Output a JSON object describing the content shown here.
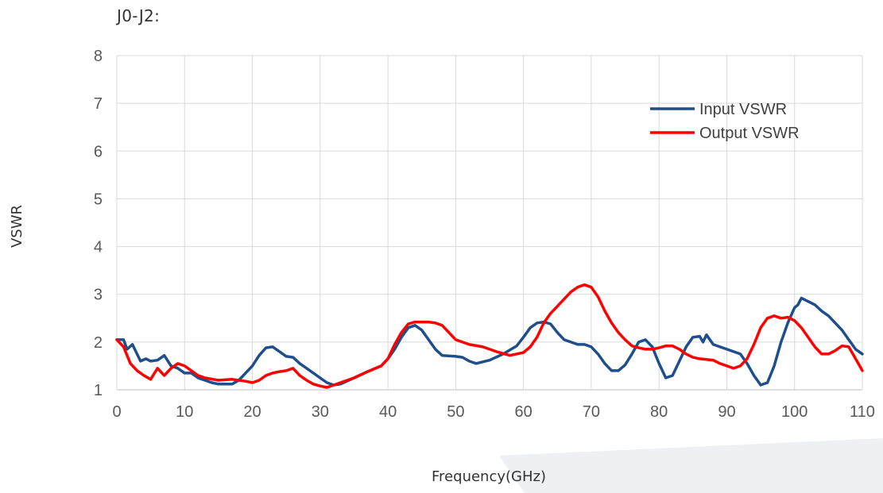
{
  "caption": "J0-J2:",
  "chart_data": {
    "type": "line",
    "title": "",
    "xlabel": "Frequency(GHz)",
    "ylabel": "VSWR",
    "xlim": [
      0,
      110
    ],
    "ylim": [
      1,
      8
    ],
    "xticks": [
      0,
      10,
      20,
      30,
      40,
      50,
      60,
      70,
      80,
      90,
      100,
      110
    ],
    "yticks": [
      1,
      2,
      3,
      4,
      5,
      6,
      7,
      8
    ],
    "grid": true,
    "legend_position": "top-right",
    "series": [
      {
        "name": "Input VSWR",
        "color": "#1F4E8C",
        "points": [
          [
            0,
            2.05
          ],
          [
            1,
            2.05
          ],
          [
            1.5,
            1.85
          ],
          [
            2.3,
            1.95
          ],
          [
            3.5,
            1.6
          ],
          [
            4.3,
            1.65
          ],
          [
            5,
            1.6
          ],
          [
            6,
            1.62
          ],
          [
            7,
            1.72
          ],
          [
            8,
            1.5
          ],
          [
            9,
            1.45
          ],
          [
            10,
            1.35
          ],
          [
            11,
            1.35
          ],
          [
            12,
            1.25
          ],
          [
            13,
            1.2
          ],
          [
            14,
            1.15
          ],
          [
            15,
            1.12
          ],
          [
            17,
            1.12
          ],
          [
            18,
            1.2
          ],
          [
            19,
            1.35
          ],
          [
            20,
            1.5
          ],
          [
            21,
            1.72
          ],
          [
            22,
            1.88
          ],
          [
            23,
            1.9
          ],
          [
            24,
            1.8
          ],
          [
            25,
            1.7
          ],
          [
            26,
            1.68
          ],
          [
            27,
            1.55
          ],
          [
            28,
            1.45
          ],
          [
            29,
            1.35
          ],
          [
            30,
            1.25
          ],
          [
            31,
            1.15
          ],
          [
            32,
            1.1
          ],
          [
            33,
            1.12
          ],
          [
            35,
            1.25
          ],
          [
            37,
            1.38
          ],
          [
            39,
            1.5
          ],
          [
            40,
            1.65
          ],
          [
            41,
            1.85
          ],
          [
            42,
            2.1
          ],
          [
            43,
            2.3
          ],
          [
            44,
            2.35
          ],
          [
            45,
            2.25
          ],
          [
            46,
            2.05
          ],
          [
            47,
            1.85
          ],
          [
            48,
            1.72
          ],
          [
            50,
            1.7
          ],
          [
            51,
            1.68
          ],
          [
            52,
            1.6
          ],
          [
            53,
            1.55
          ],
          [
            55,
            1.62
          ],
          [
            57,
            1.75
          ],
          [
            59,
            1.92
          ],
          [
            60,
            2.1
          ],
          [
            61,
            2.3
          ],
          [
            62,
            2.4
          ],
          [
            63,
            2.42
          ],
          [
            64,
            2.38
          ],
          [
            65,
            2.2
          ],
          [
            66,
            2.05
          ],
          [
            67,
            2
          ],
          [
            68,
            1.95
          ],
          [
            69,
            1.95
          ],
          [
            70,
            1.9
          ],
          [
            71,
            1.75
          ],
          [
            72,
            1.55
          ],
          [
            73,
            1.4
          ],
          [
            74,
            1.4
          ],
          [
            75,
            1.52
          ],
          [
            76,
            1.75
          ],
          [
            77,
            2
          ],
          [
            78,
            2.05
          ],
          [
            79,
            1.9
          ],
          [
            80,
            1.55
          ],
          [
            81,
            1.25
          ],
          [
            82,
            1.3
          ],
          [
            83,
            1.6
          ],
          [
            84,
            1.9
          ],
          [
            85,
            2.1
          ],
          [
            86,
            2.12
          ],
          [
            86.5,
            2
          ],
          [
            87,
            2.15
          ],
          [
            88,
            1.95
          ],
          [
            89,
            1.9
          ],
          [
            90,
            1.85
          ],
          [
            92,
            1.75
          ],
          [
            93,
            1.55
          ],
          [
            94,
            1.3
          ],
          [
            95,
            1.1
          ],
          [
            96,
            1.15
          ],
          [
            97,
            1.5
          ],
          [
            98,
            2
          ],
          [
            99,
            2.4
          ],
          [
            100,
            2.72
          ],
          [
            100.5,
            2.78
          ],
          [
            101,
            2.92
          ],
          [
            102,
            2.85
          ],
          [
            103,
            2.78
          ],
          [
            104,
            2.65
          ],
          [
            105,
            2.55
          ],
          [
            106,
            2.4
          ],
          [
            107,
            2.25
          ],
          [
            108,
            2.05
          ],
          [
            109,
            1.85
          ],
          [
            110,
            1.75
          ]
        ]
      },
      {
        "name": "Output VSWR",
        "color": "#FF0000",
        "points": [
          [
            0,
            2.05
          ],
          [
            1,
            1.9
          ],
          [
            2,
            1.55
          ],
          [
            3,
            1.4
          ],
          [
            4,
            1.3
          ],
          [
            5,
            1.22
          ],
          [
            6,
            1.45
          ],
          [
            7,
            1.3
          ],
          [
            8,
            1.45
          ],
          [
            9,
            1.55
          ],
          [
            10,
            1.5
          ],
          [
            11,
            1.4
          ],
          [
            12,
            1.3
          ],
          [
            13,
            1.25
          ],
          [
            15,
            1.2
          ],
          [
            17,
            1.22
          ],
          [
            19,
            1.18
          ],
          [
            20,
            1.15
          ],
          [
            21,
            1.2
          ],
          [
            22,
            1.3
          ],
          [
            23,
            1.35
          ],
          [
            24,
            1.38
          ],
          [
            25,
            1.4
          ],
          [
            26,
            1.45
          ],
          [
            27,
            1.3
          ],
          [
            28,
            1.2
          ],
          [
            29,
            1.12
          ],
          [
            30,
            1.08
          ],
          [
            31,
            1.05
          ],
          [
            32,
            1.1
          ],
          [
            33,
            1.15
          ],
          [
            35,
            1.25
          ],
          [
            37,
            1.38
          ],
          [
            39,
            1.5
          ],
          [
            40,
            1.65
          ],
          [
            41,
            1.95
          ],
          [
            42,
            2.2
          ],
          [
            43,
            2.38
          ],
          [
            44,
            2.42
          ],
          [
            46,
            2.42
          ],
          [
            47,
            2.4
          ],
          [
            48,
            2.35
          ],
          [
            49,
            2.2
          ],
          [
            50,
            2.05
          ],
          [
            51,
            2
          ],
          [
            52,
            1.95
          ],
          [
            54,
            1.9
          ],
          [
            56,
            1.8
          ],
          [
            58,
            1.72
          ],
          [
            60,
            1.78
          ],
          [
            61,
            1.9
          ],
          [
            62,
            2.1
          ],
          [
            63,
            2.4
          ],
          [
            64,
            2.6
          ],
          [
            65,
            2.75
          ],
          [
            66,
            2.9
          ],
          [
            67,
            3.05
          ],
          [
            68,
            3.15
          ],
          [
            69,
            3.2
          ],
          [
            70,
            3.15
          ],
          [
            71,
            2.95
          ],
          [
            72,
            2.65
          ],
          [
            73,
            2.4
          ],
          [
            74,
            2.2
          ],
          [
            75,
            2.05
          ],
          [
            76,
            1.92
          ],
          [
            77,
            1.88
          ],
          [
            78,
            1.85
          ],
          [
            79,
            1.85
          ],
          [
            80,
            1.88
          ],
          [
            81,
            1.92
          ],
          [
            82,
            1.92
          ],
          [
            83,
            1.85
          ],
          [
            84,
            1.75
          ],
          [
            85,
            1.68
          ],
          [
            86,
            1.65
          ],
          [
            88,
            1.62
          ],
          [
            89,
            1.55
          ],
          [
            90,
            1.5
          ],
          [
            91,
            1.45
          ],
          [
            92,
            1.5
          ],
          [
            93,
            1.65
          ],
          [
            94,
            1.95
          ],
          [
            95,
            2.3
          ],
          [
            96,
            2.5
          ],
          [
            97,
            2.55
          ],
          [
            98,
            2.5
          ],
          [
            99,
            2.52
          ],
          [
            100,
            2.45
          ],
          [
            101,
            2.3
          ],
          [
            102,
            2.1
          ],
          [
            103,
            1.9
          ],
          [
            104,
            1.75
          ],
          [
            105,
            1.75
          ],
          [
            106,
            1.82
          ],
          [
            107,
            1.92
          ],
          [
            108,
            1.9
          ],
          [
            109,
            1.65
          ],
          [
            110,
            1.4
          ]
        ]
      }
    ]
  }
}
